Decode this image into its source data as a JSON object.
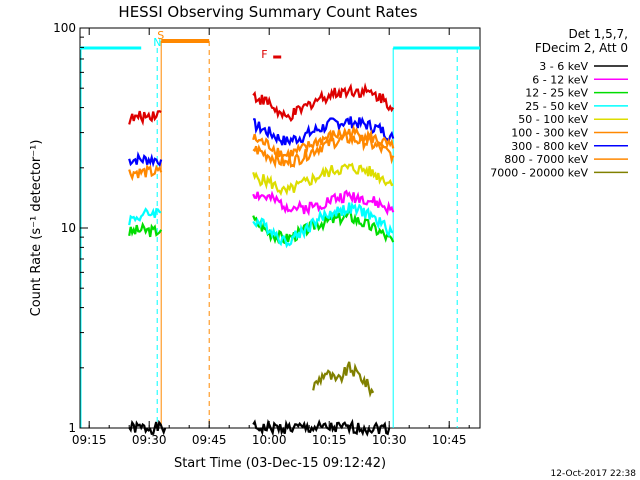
{
  "chart_data": {
    "type": "line",
    "title": "HESSI Observing Summary Count Rates",
    "xlabel": "Start Time (03-Dec-15 09:12:42)",
    "ylabel": "Count Rate (s⁻¹ detector⁻¹)",
    "yscale": "log",
    "ylim": [
      1,
      100
    ],
    "xlim": [
      "09:12:42",
      "10:52:42"
    ],
    "x_ticks": [
      "09:15",
      "09:30",
      "09:45",
      "10:00",
      "10:15",
      "10:30",
      "10:45"
    ],
    "y_ticks": [
      "1",
      "10",
      "100"
    ],
    "legend_header": [
      "Det 1,5,7,",
      "FDecim 2, Att 0"
    ],
    "legend_position": "top-right",
    "timestamp": "12-Oct-2017 22:38",
    "series": [
      {
        "name": "3 - 6 keV",
        "color": "#000000",
        "segments": [
          {
            "x": [
              "09:25",
              "09:28",
              "09:31",
              "09:34"
            ],
            "y": [
              1.0,
              1.0,
              1.0,
              1.0
            ]
          },
          {
            "x": [
              "09:56",
              "10:02",
              "10:08",
              "10:14",
              "10:20",
              "10:26",
              "10:30"
            ],
            "y": [
              1.0,
              1.0,
              1.0,
              1.0,
              1.0,
              1.0,
              1.0
            ]
          }
        ]
      },
      {
        "name": "6 - 12 keV",
        "color": "#ff00ff",
        "segments": [
          {
            "x": [
              "09:56",
              "10:00",
              "10:04",
              "10:08",
              "10:12",
              "10:16",
              "10:20",
              "10:24",
              "10:28",
              "10:31"
            ],
            "y": [
              15,
              14,
              13,
              12.5,
              13,
              14,
              14.5,
              14,
              13,
              12
            ]
          }
        ]
      },
      {
        "name": "12 - 25 keV",
        "color": "#00dd00",
        "segments": [
          {
            "x": [
              "09:25",
              "09:28",
              "09:31",
              "09:33"
            ],
            "y": [
              9.5,
              9.8,
              9.6,
              9.8
            ]
          },
          {
            "x": [
              "09:56",
              "10:00",
              "10:04",
              "10:08",
              "10:12",
              "10:16",
              "10:20",
              "10:24",
              "10:28",
              "10:31"
            ],
            "y": [
              11,
              9.5,
              8.8,
              9.5,
              10.5,
              11,
              11.5,
              10.5,
              9.5,
              8.5
            ]
          }
        ]
      },
      {
        "name": "25 - 50 keV",
        "color": "#00ffff",
        "segments": [
          {
            "x": [
              "09:25",
              "09:28",
              "09:31",
              "09:33"
            ],
            "y": [
              11,
              11.5,
              12,
              12
            ]
          },
          {
            "x": [
              "09:56",
              "10:00",
              "10:04",
              "10:08",
              "10:12",
              "10:16",
              "10:20",
              "10:24",
              "10:28",
              "10:31"
            ],
            "y": [
              11,
              10,
              8.5,
              9.5,
              11,
              12,
              12.5,
              12,
              10.5,
              9.5
            ]
          }
        ]
      },
      {
        "name": "50 - 100 keV",
        "color": "#dddd00",
        "segments": [
          {
            "x": [
              "09:56",
              "10:00",
              "10:04",
              "10:08",
              "10:12",
              "10:16",
              "10:20",
              "10:24",
              "10:28",
              "10:31"
            ],
            "y": [
              18,
              17,
              15,
              16.5,
              18,
              19.5,
              20,
              19.5,
              18,
              16.5
            ]
          }
        ]
      },
      {
        "name": "100 - 300 keV",
        "color": "#ff8800",
        "segments": [
          {
            "x": [
              "09:25",
              "09:28",
              "09:31",
              "09:33"
            ],
            "y": [
              19,
              19,
              19,
              19
            ]
          },
          {
            "x": [
              "09:56",
              "10:00",
              "10:04",
              "10:08",
              "10:12",
              "10:16",
              "10:20",
              "10:24",
              "10:28",
              "10:31"
            ],
            "y": [
              25,
              23,
              21,
              22.5,
              25,
              27,
              28,
              27,
              25,
              23
            ]
          }
        ]
      },
      {
        "name": "300 - 800 keV",
        "color": "#0000ff",
        "segments": [
          {
            "x": [
              "09:25",
              "09:28",
              "09:31",
              "09:33"
            ],
            "y": [
              22,
              22,
              22,
              22
            ]
          },
          {
            "x": [
              "09:56",
              "10:00",
              "10:04",
              "10:08",
              "10:12",
              "10:16",
              "10:20",
              "10:24",
              "10:28",
              "10:31"
            ],
            "y": [
              33,
              30,
              27,
              28.5,
              31,
              33.5,
              34,
              33,
              31,
              28
            ]
          }
        ]
      },
      {
        "name": "800 - 7000 keV",
        "color": "#ff8800",
        "segments": [
          {
            "x": [
              "09:56",
              "10:00",
              "10:04",
              "10:08",
              "10:12",
              "10:16",
              "10:20",
              "10:24",
              "10:28",
              "10:31"
            ],
            "y": [
              28,
              26,
              23,
              24.5,
              27,
              29,
              30,
              29,
              27,
              25
            ]
          }
        ]
      },
      {
        "name": "7000 - 20000 keV",
        "color": "#808000",
        "segments": [
          {
            "x": [
              "10:11",
              "10:14",
              "10:17",
              "10:20",
              "10:23",
              "10:26"
            ],
            "y": [
              1.6,
              1.9,
              1.7,
              2.0,
              1.8,
              1.5
            ]
          }
        ]
      },
      {
        "name": "",
        "color": "#dd0000",
        "segments": [
          {
            "x": [
              "09:25",
              "09:28",
              "09:31",
              "09:33"
            ],
            "y": [
              35,
              36,
              37,
              38
            ]
          },
          {
            "x": [
              "09:56",
              "10:00",
              "10:04",
              "10:08",
              "10:12",
              "10:16",
              "10:20",
              "10:24",
              "10:28",
              "10:31"
            ],
            "y": [
              46,
              42,
              35,
              39,
              44,
              47,
              49,
              48,
              45,
              40
            ]
          }
        ]
      }
    ],
    "flags": [
      {
        "label": "N",
        "color": "#00ffff",
        "x": "09:32",
        "style": "dashed"
      },
      {
        "label": "S",
        "color": "#ff8800",
        "x": "09:33"
      },
      {
        "label": "F",
        "color": "#dd0000",
        "x": "10:01"
      }
    ]
  }
}
